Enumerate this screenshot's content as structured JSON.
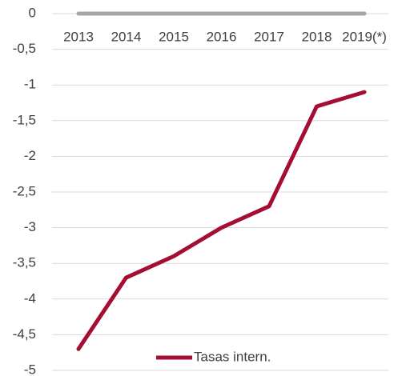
{
  "chart_data": {
    "type": "line",
    "categories": [
      "2013",
      "2014",
      "2015",
      "2016",
      "2017",
      "2018",
      "2019(*)"
    ],
    "series": [
      {
        "color": "#a6a6a6",
        "values": [
          0,
          0,
          0,
          0,
          0,
          0,
          0
        ]
      },
      {
        "name": "Tasas intern.",
        "color": "#a50e33",
        "values": [
          -4.7,
          -3.7,
          -3.4,
          -3.0,
          -2.7,
          -1.3,
          -1.1
        ]
      }
    ],
    "ylim": [
      -5,
      0
    ],
    "yticks": [
      0,
      {
        "value": -0.5,
        "label": "-0,5"
      },
      -1,
      {
        "value": -1.5,
        "label": "-1,5"
      },
      -2,
      {
        "value": -2.5,
        "label": "-2,5"
      },
      -3,
      {
        "value": -3.5,
        "label": "-3,5"
      },
      -4,
      {
        "value": -4.5,
        "label": "-4,5"
      },
      -5
    ],
    "grid": true,
    "legend": "bottom"
  }
}
